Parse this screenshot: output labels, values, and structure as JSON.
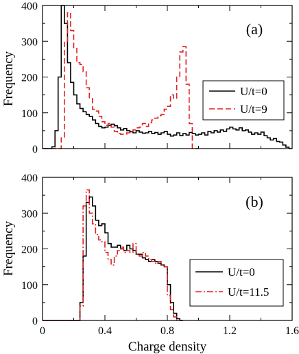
{
  "chart_data": [
    {
      "type": "line",
      "panel_label": "(a)",
      "xlabel": "",
      "ylabel": "Frequency",
      "xlim": [
        0,
        1.6
      ],
      "ylim": [
        0,
        400
      ],
      "x_ticks": [
        0,
        0.4,
        0.8,
        1.2,
        1.6
      ],
      "y_ticks": [
        0,
        100,
        200,
        300,
        400
      ],
      "y_tick_labels": [
        "0",
        "100",
        "200",
        "300",
        "400"
      ],
      "legend_position": "right-middle",
      "series": [
        {
          "name": "U/t=0",
          "color": "#000000",
          "dash": "solid",
          "x": [
            0,
            0.02,
            0.04,
            0.06,
            0.08,
            0.1,
            0.12,
            0.14,
            0.16,
            0.18,
            0.2,
            0.22,
            0.24,
            0.26,
            0.28,
            0.3,
            0.32,
            0.34,
            0.36,
            0.38,
            0.4,
            0.42,
            0.44,
            0.46,
            0.48,
            0.5,
            0.52,
            0.54,
            0.56,
            0.58,
            0.6,
            0.62,
            0.64,
            0.66,
            0.68,
            0.7,
            0.72,
            0.74,
            0.76,
            0.78,
            0.8,
            0.82,
            0.84,
            0.86,
            0.88,
            0.9,
            0.92,
            0.94,
            0.96,
            0.98,
            1.0,
            1.02,
            1.04,
            1.06,
            1.08,
            1.1,
            1.12,
            1.14,
            1.16,
            1.18,
            1.2,
            1.22,
            1.24,
            1.26,
            1.28,
            1.3,
            1.32,
            1.34,
            1.36,
            1.38,
            1.4,
            1.42,
            1.44,
            1.46,
            1.48,
            1.5,
            1.52,
            1.54,
            1.56,
            1.58
          ],
          "values": [
            0,
            0,
            0,
            5,
            50,
            200,
            400,
            350,
            240,
            185,
            150,
            125,
            112,
            103,
            95,
            90,
            80,
            70,
            62,
            58,
            60,
            65,
            68,
            64,
            58,
            52,
            56,
            50,
            47,
            44,
            50,
            46,
            43,
            44,
            48,
            42,
            45,
            40,
            44,
            48,
            40,
            35,
            38,
            44,
            36,
            42,
            38,
            45,
            42,
            38,
            40,
            44,
            38,
            48,
            44,
            50,
            46,
            52,
            48,
            55,
            60,
            55,
            52,
            58,
            50,
            52,
            46,
            40,
            44,
            40,
            46,
            36,
            30,
            24,
            28,
            20,
            18,
            10,
            4,
            0
          ]
        },
        {
          "name": "U/t=9",
          "color": "#e02020",
          "dash": "dashed",
          "x": [
            0,
            0.02,
            0.04,
            0.06,
            0.08,
            0.1,
            0.12,
            0.14,
            0.16,
            0.18,
            0.2,
            0.22,
            0.24,
            0.26,
            0.28,
            0.3,
            0.32,
            0.34,
            0.36,
            0.38,
            0.4,
            0.42,
            0.44,
            0.46,
            0.48,
            0.5,
            0.52,
            0.54,
            0.56,
            0.58,
            0.6,
            0.62,
            0.64,
            0.66,
            0.68,
            0.7,
            0.72,
            0.74,
            0.76,
            0.78,
            0.8,
            0.82,
            0.84,
            0.86,
            0.88,
            0.9,
            0.92,
            0.94,
            0.96,
            0.98
          ],
          "values": [
            0,
            0,
            0,
            0,
            0,
            0,
            30,
            300,
            380,
            330,
            280,
            240,
            235,
            215,
            170,
            140,
            110,
            105,
            90,
            75,
            65,
            70,
            60,
            48,
            42,
            40,
            40,
            44,
            48,
            52,
            58,
            60,
            70,
            62,
            72,
            80,
            85,
            92,
            95,
            110,
            118,
            150,
            140,
            200,
            270,
            285,
            180,
            70,
            0,
            0
          ]
        }
      ]
    },
    {
      "type": "line",
      "panel_label": "(b)",
      "xlabel": "Charge density",
      "ylabel": "Frequency",
      "xlim": [
        0,
        1.6
      ],
      "ylim": [
        0,
        400
      ],
      "x_ticks": [
        0,
        0.4,
        0.8,
        1.2,
        1.6
      ],
      "x_tick_labels": [
        "0",
        "0.4",
        "0.8",
        "1.2",
        "1.6"
      ],
      "y_ticks": [
        0,
        100,
        200,
        300,
        400
      ],
      "y_tick_labels": [
        "0",
        "100",
        "200",
        "300",
        "400"
      ],
      "legend_position": "bottom-right",
      "series": [
        {
          "name": "U/t=0",
          "color": "#000000",
          "dash": "solid",
          "x": [
            0,
            0.02,
            0.04,
            0.06,
            0.08,
            0.1,
            0.12,
            0.14,
            0.16,
            0.18,
            0.2,
            0.22,
            0.24,
            0.26,
            0.28,
            0.3,
            0.32,
            0.34,
            0.36,
            0.38,
            0.4,
            0.42,
            0.44,
            0.46,
            0.48,
            0.5,
            0.52,
            0.54,
            0.56,
            0.58,
            0.6,
            0.62,
            0.64,
            0.66,
            0.68,
            0.7,
            0.72,
            0.74,
            0.76,
            0.78,
            0.8,
            0.82,
            0.84,
            0.86,
            0.88
          ],
          "values": [
            0,
            0,
            0,
            0,
            0,
            0,
            0,
            0,
            0,
            0,
            0,
            0,
            50,
            180,
            330,
            345,
            320,
            280,
            265,
            270,
            245,
            215,
            205,
            205,
            210,
            200,
            195,
            210,
            200,
            195,
            185,
            185,
            175,
            170,
            165,
            170,
            165,
            160,
            155,
            150,
            100,
            50,
            20,
            5,
            0
          ]
        },
        {
          "name": "U/t=11.5",
          "color": "#e02020",
          "dash": "dashdot",
          "x": [
            0,
            0.02,
            0.04,
            0.06,
            0.08,
            0.1,
            0.12,
            0.14,
            0.16,
            0.18,
            0.2,
            0.22,
            0.24,
            0.26,
            0.28,
            0.3,
            0.32,
            0.34,
            0.36,
            0.38,
            0.4,
            0.42,
            0.44,
            0.46,
            0.48,
            0.5,
            0.52,
            0.54,
            0.56,
            0.58,
            0.6,
            0.62,
            0.64,
            0.66,
            0.68,
            0.7,
            0.72,
            0.74,
            0.76,
            0.78,
            0.8,
            0.82,
            0.84,
            0.86,
            0.88
          ],
          "values": [
            0,
            0,
            0,
            0,
            0,
            0,
            0,
            0,
            0,
            0,
            0,
            0,
            40,
            320,
            365,
            300,
            270,
            240,
            225,
            220,
            190,
            170,
            155,
            180,
            195,
            205,
            190,
            195,
            190,
            215,
            185,
            180,
            190,
            180,
            170,
            165,
            160,
            165,
            155,
            150,
            70,
            30,
            10,
            0,
            0
          ]
        }
      ]
    }
  ]
}
